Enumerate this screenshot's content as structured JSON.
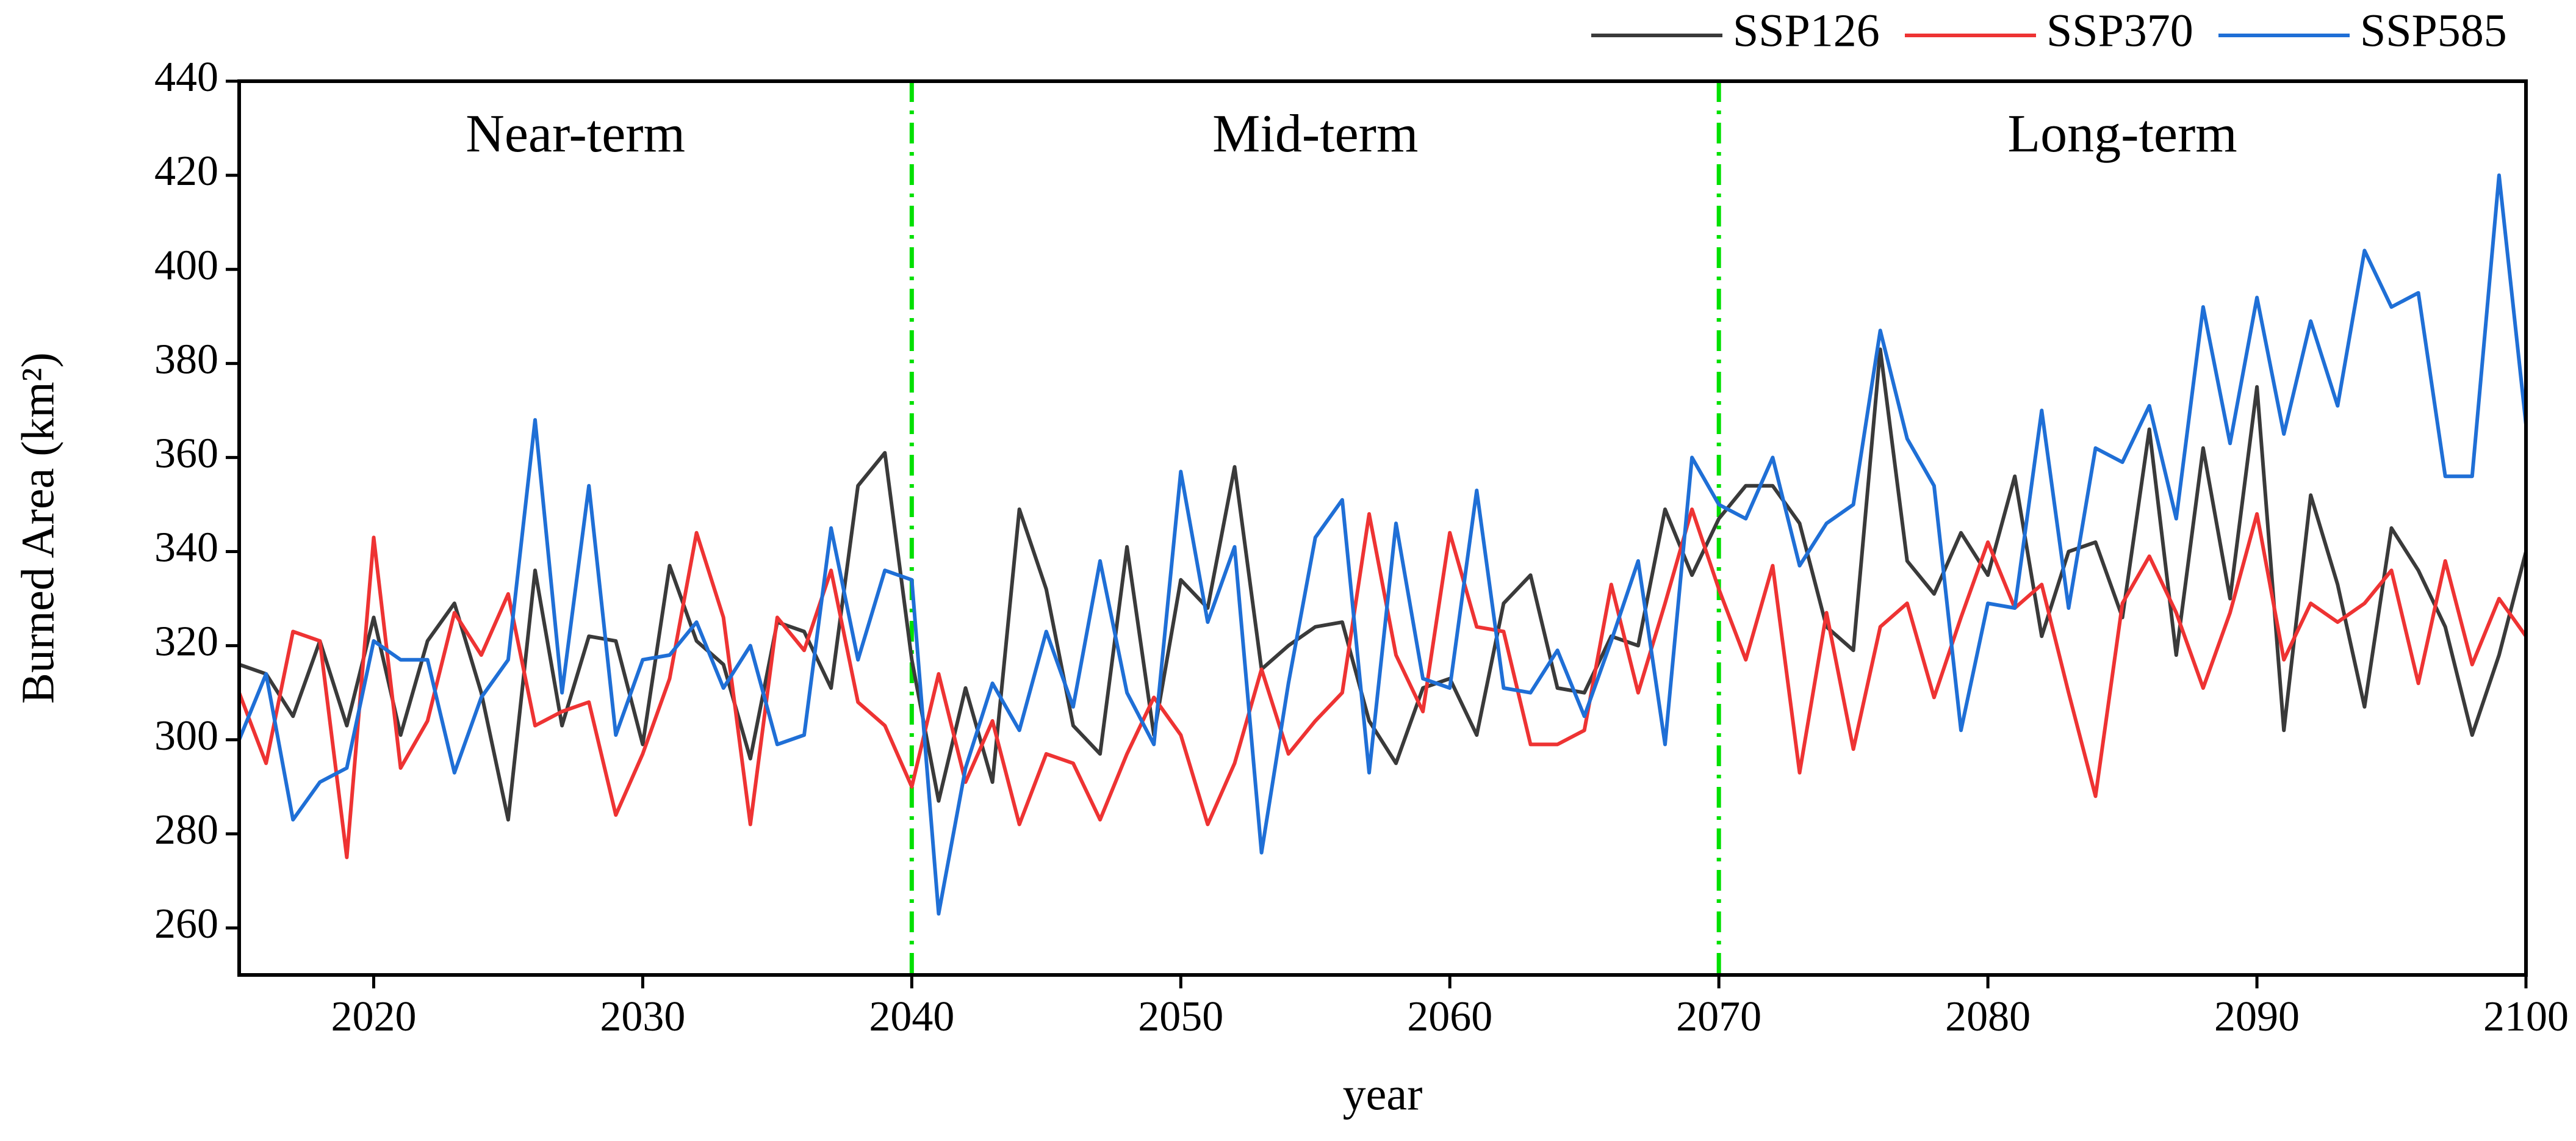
{
  "chart_data": {
    "type": "line",
    "xlabel": "year",
    "ylabel": "Burned Area (km²)",
    "x": [
      2015,
      2016,
      2017,
      2018,
      2019,
      2020,
      2021,
      2022,
      2023,
      2024,
      2025,
      2026,
      2027,
      2028,
      2029,
      2030,
      2031,
      2032,
      2033,
      2034,
      2035,
      2036,
      2037,
      2038,
      2039,
      2040,
      2041,
      2042,
      2043,
      2044,
      2045,
      2046,
      2047,
      2048,
      2049,
      2050,
      2051,
      2052,
      2053,
      2054,
      2055,
      2056,
      2057,
      2058,
      2059,
      2060,
      2061,
      2062,
      2063,
      2064,
      2065,
      2066,
      2067,
      2068,
      2069,
      2070,
      2071,
      2072,
      2073,
      2074,
      2075,
      2076,
      2077,
      2078,
      2079,
      2080,
      2081,
      2082,
      2083,
      2084,
      2085,
      2086,
      2087,
      2088,
      2089,
      2090,
      2091,
      2092,
      2093,
      2094,
      2095,
      2096,
      2097,
      2098,
      2099,
      2100
    ],
    "series": [
      {
        "name": "SSP126",
        "color": "#3a3a3a",
        "values": [
          316,
          314,
          305,
          321,
          303,
          326,
          301,
          321,
          329,
          310,
          283,
          336,
          303,
          322,
          321,
          299,
          337,
          321,
          316,
          296,
          325,
          323,
          311,
          354,
          361,
          317,
          287,
          311,
          291,
          349,
          332,
          303,
          297,
          341,
          301,
          334,
          328,
          358,
          315,
          320,
          324,
          325,
          304,
          295,
          311,
          313,
          301,
          329,
          335,
          311,
          310,
          322,
          320,
          349,
          335,
          347,
          354,
          354,
          346,
          324,
          319,
          383,
          338,
          331,
          344,
          335,
          356,
          322,
          340,
          342,
          326,
          366,
          318,
          362,
          330,
          375,
          302,
          352,
          333,
          307,
          345,
          336,
          324,
          301,
          318,
          340
        ]
      },
      {
        "name": "SSP370",
        "color": "#ee3333",
        "values": [
          310,
          295,
          323,
          321,
          275,
          343,
          294,
          304,
          327,
          318,
          331,
          303,
          306,
          308,
          284,
          297,
          313,
          344,
          326,
          282,
          326,
          319,
          336,
          308,
          303,
          290,
          314,
          291,
          304,
          282,
          297,
          295,
          283,
          297,
          309,
          301,
          282,
          295,
          315,
          297,
          304,
          310,
          348,
          318,
          306,
          344,
          324,
          323,
          299,
          299,
          302,
          333,
          310,
          329,
          349,
          332,
          317,
          337,
          293,
          327,
          298,
          324,
          329,
          309,
          326,
          342,
          328,
          333,
          310,
          288,
          329,
          339,
          327,
          311,
          327,
          348,
          317,
          329,
          325,
          329,
          336,
          312,
          338,
          316,
          330,
          322
        ]
      },
      {
        "name": "SSP585",
        "color": "#1f6fd6",
        "values": [
          300,
          314,
          283,
          291,
          294,
          321,
          317,
          317,
          293,
          309,
          317,
          368,
          310,
          354,
          301,
          317,
          318,
          325,
          311,
          320,
          299,
          301,
          345,
          317,
          336,
          334,
          263,
          294,
          312,
          302,
          323,
          307,
          338,
          310,
          299,
          357,
          325,
          341,
          276,
          312,
          343,
          351,
          293,
          346,
          313,
          311,
          353,
          311,
          310,
          319,
          305,
          321,
          338,
          299,
          360,
          350,
          347,
          360,
          337,
          346,
          350,
          387,
          364,
          354,
          302,
          329,
          328,
          370,
          328,
          362,
          359,
          371,
          347,
          392,
          363,
          394,
          365,
          389,
          371,
          404,
          392,
          395,
          356,
          356,
          420,
          367
        ]
      }
    ],
    "xlim": [
      2015,
      2100
    ],
    "xticks": [
      2020,
      2030,
      2040,
      2050,
      2060,
      2070,
      2080,
      2090,
      2100
    ],
    "ylim": [
      250,
      440
    ],
    "yticks": [
      260,
      280,
      300,
      320,
      340,
      360,
      380,
      400,
      420,
      440
    ],
    "vlines": [
      2040,
      2070
    ],
    "vline_color": "#00e000",
    "regions": [
      "Near-term",
      "Mid-term",
      "Long-term"
    ],
    "legend": "top-right",
    "grid": false
  }
}
